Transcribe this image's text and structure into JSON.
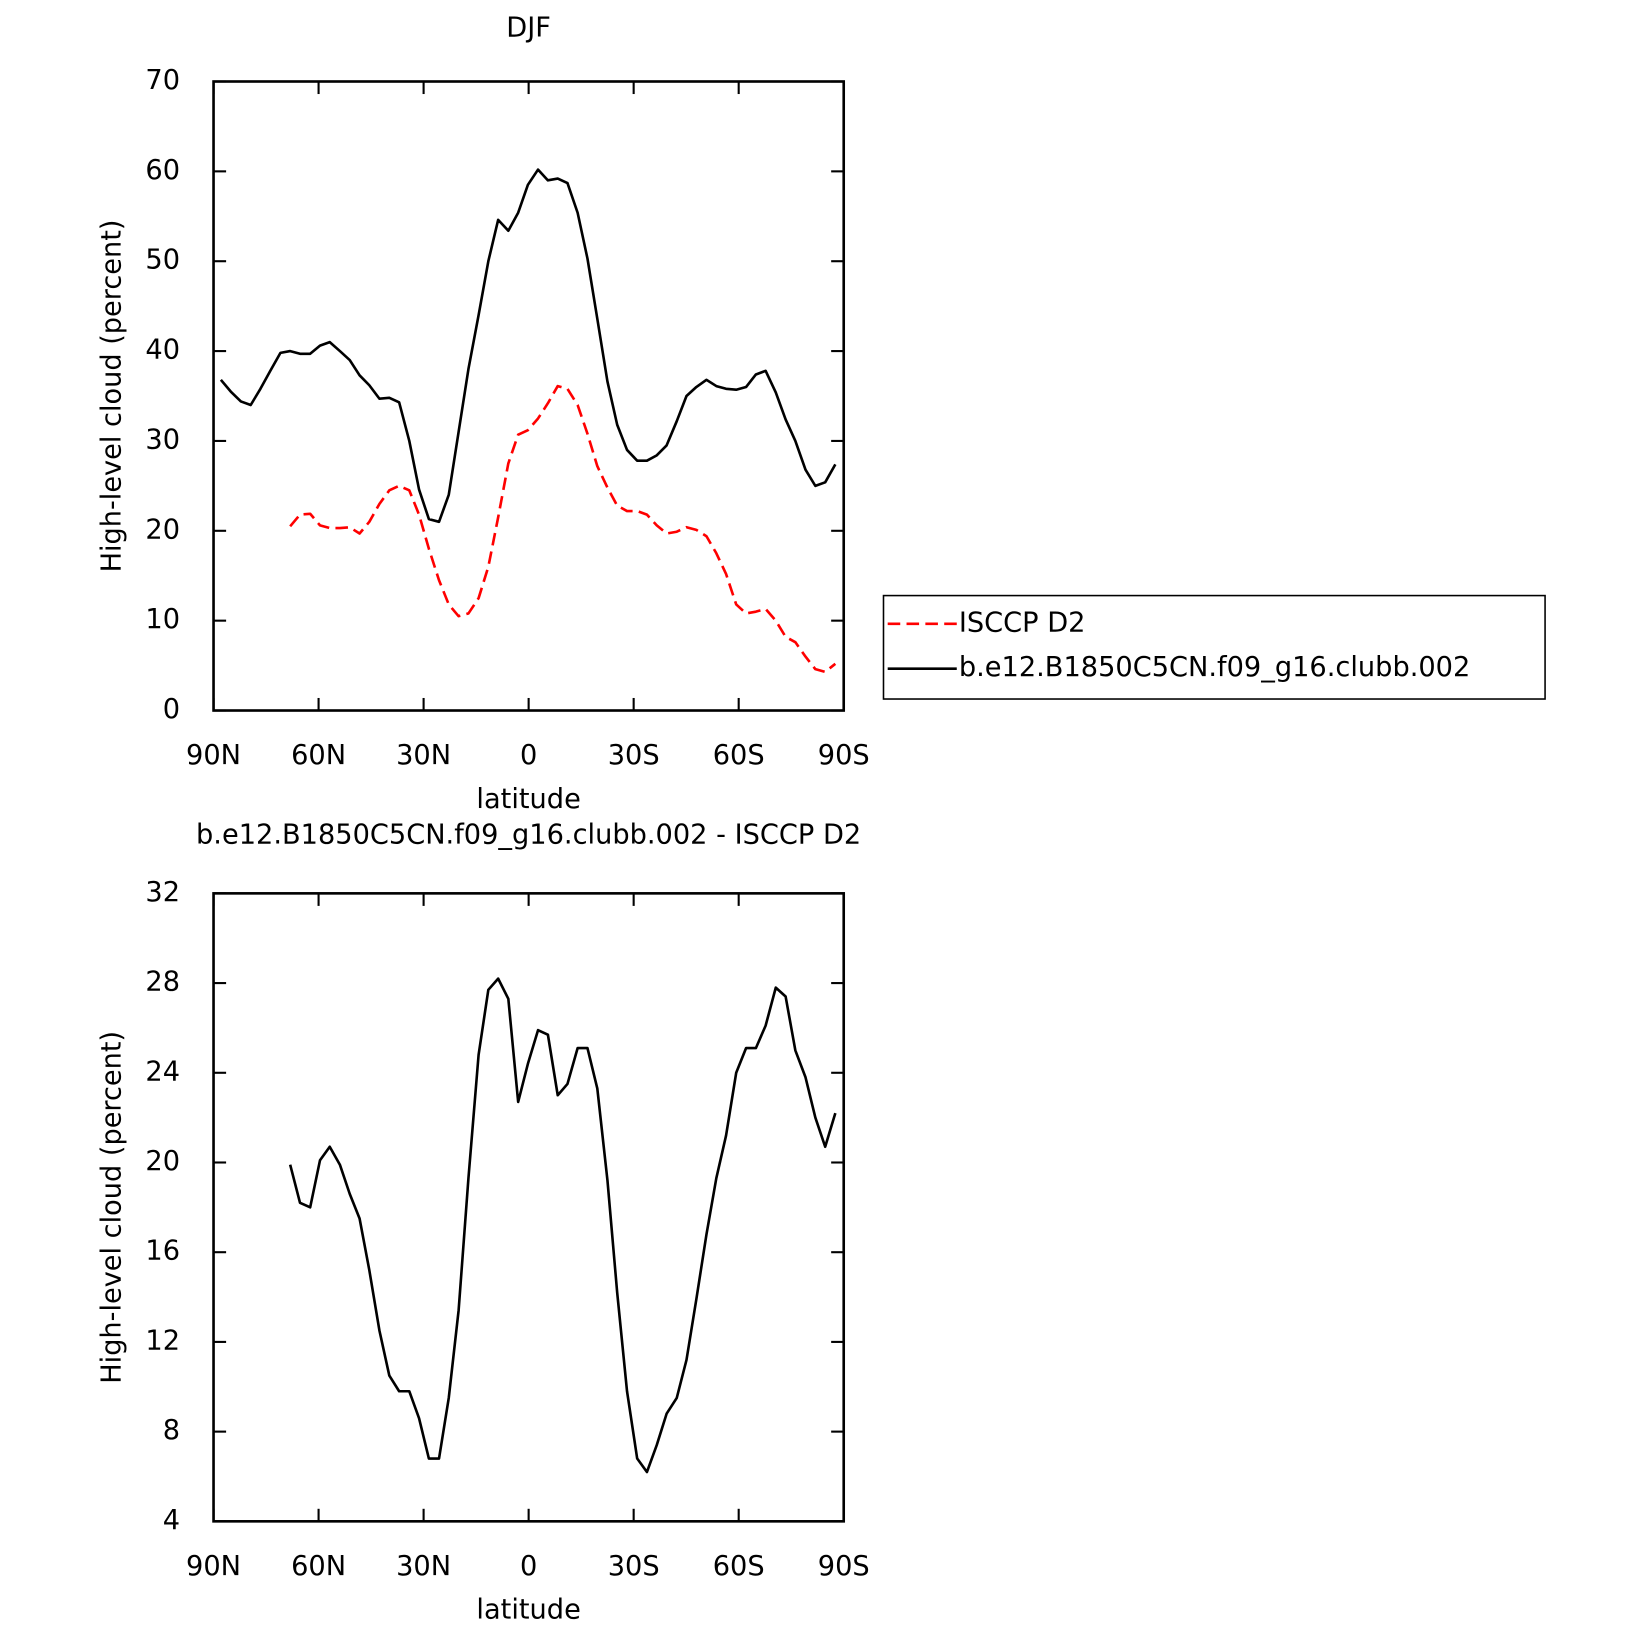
{
  "chart_data": [
    {
      "type": "line",
      "title": "DJF",
      "xlabel": "latitude",
      "ylabel": "High-level cloud (percent)",
      "x": [
        87.9,
        85.1,
        82.2,
        79.4,
        76.6,
        73.8,
        70.9,
        68.1,
        65.3,
        62.4,
        59.6,
        56.8,
        53.9,
        51.1,
        48.3,
        45.5,
        42.6,
        39.8,
        37.0,
        34.1,
        31.3,
        28.5,
        25.6,
        22.8,
        20.0,
        17.2,
        14.3,
        11.5,
        8.7,
        5.8,
        3.0,
        0.2,
        -2.7,
        -5.5,
        -8.3,
        -11.1,
        -14.0,
        -16.8,
        -19.6,
        -22.5,
        -25.3,
        -28.1,
        -31.0,
        -33.8,
        -36.6,
        -39.4,
        -42.3,
        -45.1,
        -47.9,
        -50.8,
        -53.6,
        -56.4,
        -59.3,
        -62.1,
        -64.9,
        -67.7,
        -70.6,
        -73.4,
        -76.2,
        -79.1,
        -81.9,
        -84.7,
        -87.6
      ],
      "xlim": [
        90,
        -90
      ],
      "xticks": [
        {
          "value": 90,
          "label": "90N"
        },
        {
          "value": 60,
          "label": "60N"
        },
        {
          "value": 30,
          "label": "30N"
        },
        0,
        {
          "value": -30,
          "label": "30S"
        },
        {
          "value": -60,
          "label": "60S"
        },
        {
          "value": -90,
          "label": "90S"
        }
      ],
      "ylim": [
        0,
        70
      ],
      "yticks": [
        0,
        10,
        20,
        30,
        40,
        50,
        60,
        70
      ],
      "legend": "right",
      "series": [
        {
          "name": "ISCCP D2",
          "color": "#ff0000",
          "dash": true,
          "values": [
            null,
            null,
            null,
            null,
            null,
            null,
            null,
            20.5,
            21.8,
            21.9,
            20.6,
            20.3,
            20.3,
            20.4,
            19.7,
            21.0,
            23.0,
            24.5,
            25.0,
            24.5,
            21.8,
            18.0,
            14.5,
            11.8,
            10.5,
            10.8,
            12.5,
            16.0,
            21.5,
            27.5,
            30.7,
            31.2,
            32.5,
            34.2,
            36.1,
            35.8,
            34.0,
            30.8,
            27.2,
            24.8,
            22.8,
            22.2,
            22.2,
            21.8,
            20.6,
            19.7,
            19.9,
            20.4,
            20.1,
            19.4,
            17.5,
            15.2,
            11.8,
            10.8,
            11.0,
            11.3,
            10.0,
            8.2,
            7.6,
            6.0,
            4.6,
            4.3,
            5.2
          ]
        },
        {
          "name": "b.e12.B1850C5CN.f09_g16.clubb.002",
          "color": "#000000",
          "dash": false,
          "values": [
            36.8,
            35.5,
            34.4,
            34.0,
            35.8,
            37.8,
            39.8,
            40.0,
            39.7,
            39.7,
            40.6,
            41.0,
            40.0,
            39.0,
            37.3,
            36.2,
            34.7,
            34.8,
            34.3,
            30.0,
            24.6,
            21.3,
            21.0,
            24.0,
            31.0,
            38.0,
            44.0,
            50.0,
            54.6,
            53.4,
            55.4,
            58.5,
            60.2,
            59.0,
            59.2,
            58.7,
            55.4,
            50.3,
            43.6,
            36.6,
            31.8,
            29.0,
            27.8,
            27.8,
            28.4,
            29.5,
            32.2,
            35.0,
            36.0,
            36.8,
            36.1,
            35.8,
            35.7,
            36.0,
            37.4,
            37.8,
            35.4,
            32.4,
            30.0,
            26.8,
            25.0,
            25.4,
            27.4
          ]
        }
      ]
    },
    {
      "type": "line",
      "title": "b.e12.B1850C5CN.f09_g16.clubb.002 - ISCCP D2",
      "xlabel": "latitude",
      "ylabel": "High-level cloud (percent)",
      "x": [
        87.9,
        85.1,
        82.2,
        79.4,
        76.6,
        73.8,
        70.9,
        68.1,
        65.3,
        62.4,
        59.6,
        56.8,
        53.9,
        51.1,
        48.3,
        45.5,
        42.6,
        39.8,
        37.0,
        34.1,
        31.3,
        28.5,
        25.6,
        22.8,
        20.0,
        17.2,
        14.3,
        11.5,
        8.7,
        5.8,
        3.0,
        0.2,
        -2.7,
        -5.5,
        -8.3,
        -11.1,
        -14.0,
        -16.8,
        -19.6,
        -22.5,
        -25.3,
        -28.1,
        -31.0,
        -33.8,
        -36.6,
        -39.4,
        -42.3,
        -45.1,
        -47.9,
        -50.8,
        -53.6,
        -56.4,
        -59.3,
        -62.1,
        -64.9,
        -67.7,
        -70.6,
        -73.4,
        -76.2,
        -79.1,
        -81.9,
        -84.7,
        -87.6
      ],
      "xlim": [
        90,
        -90
      ],
      "xticks": [
        {
          "value": 90,
          "label": "90N"
        },
        {
          "value": 60,
          "label": "60N"
        },
        {
          "value": 30,
          "label": "30N"
        },
        0,
        {
          "value": -30,
          "label": "30S"
        },
        {
          "value": -60,
          "label": "60S"
        },
        {
          "value": -90,
          "label": "90S"
        }
      ],
      "ylim": [
        4,
        32
      ],
      "yticks": [
        4,
        8,
        12,
        16,
        20,
        24,
        28,
        32
      ],
      "legend": false,
      "series": [
        {
          "color": "#000000",
          "dash": false,
          "values": [
            null,
            null,
            null,
            null,
            null,
            null,
            null,
            19.9,
            18.2,
            18.0,
            20.1,
            20.7,
            19.9,
            18.6,
            17.5,
            15.2,
            12.5,
            10.5,
            9.8,
            9.8,
            8.6,
            6.8,
            6.8,
            9.5,
            13.4,
            19.3,
            24.8,
            27.7,
            28.2,
            27.3,
            22.7,
            24.4,
            25.9,
            25.7,
            23.0,
            23.5,
            25.1,
            25.1,
            23.3,
            19.2,
            14.2,
            9.8,
            6.8,
            6.2,
            7.4,
            8.8,
            9.5,
            11.2,
            13.9,
            16.8,
            19.3,
            21.2,
            24.0,
            25.1,
            25.1,
            26.1,
            27.8,
            27.4,
            25.0,
            23.8,
            22.0,
            20.7,
            22.2
          ]
        }
      ]
    }
  ]
}
